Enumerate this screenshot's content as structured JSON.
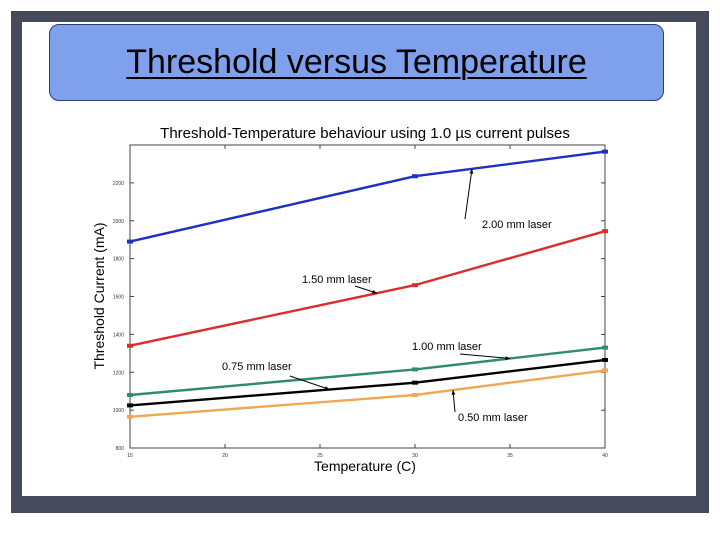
{
  "slide": {
    "title": "Threshold versus Temperature"
  },
  "colors": {
    "frame": "#464a5c",
    "title_fill": "#7fa0ec",
    "series_2_00": "#1f2fc2",
    "series_1_50": "#de2b2b",
    "series_1_00": "#2e8c66",
    "series_0_75": "#000000",
    "series_0_50": "#f0a856"
  },
  "chart_data": {
    "type": "line",
    "title": "Threshold-Temperature behaviour using 1.0 µs current pulses",
    "xlabel": "Temperature (C)",
    "ylabel": "Threshold Current (mA)",
    "xlim": [
      15,
      40
    ],
    "ylim": [
      800,
      2400
    ],
    "x_ticks": [
      "15",
      "20",
      "25",
      "30",
      "35",
      "40"
    ],
    "y_ticks": [
      "800",
      "1000",
      "1200",
      "1400",
      "1600",
      "1800",
      "2000",
      "2200"
    ],
    "grid": false,
    "series": [
      {
        "name": "2.00 mm laser",
        "x": [
          15,
          30,
          40
        ],
        "values": [
          1890,
          2235,
          2365
        ]
      },
      {
        "name": "1.50 mm laser",
        "x": [
          15,
          30,
          40
        ],
        "values": [
          1340,
          1660,
          1945
        ]
      },
      {
        "name": "1.00 mm laser",
        "x": [
          15,
          30,
          40
        ],
        "values": [
          1080,
          1215,
          1330
        ]
      },
      {
        "name": "0.75 mm laser",
        "x": [
          15,
          30,
          40
        ],
        "values": [
          1025,
          1145,
          1265
        ]
      },
      {
        "name": "0.50 mm laser",
        "x": [
          15,
          30,
          40
        ],
        "values": [
          965,
          1080,
          1210
        ]
      }
    ]
  }
}
